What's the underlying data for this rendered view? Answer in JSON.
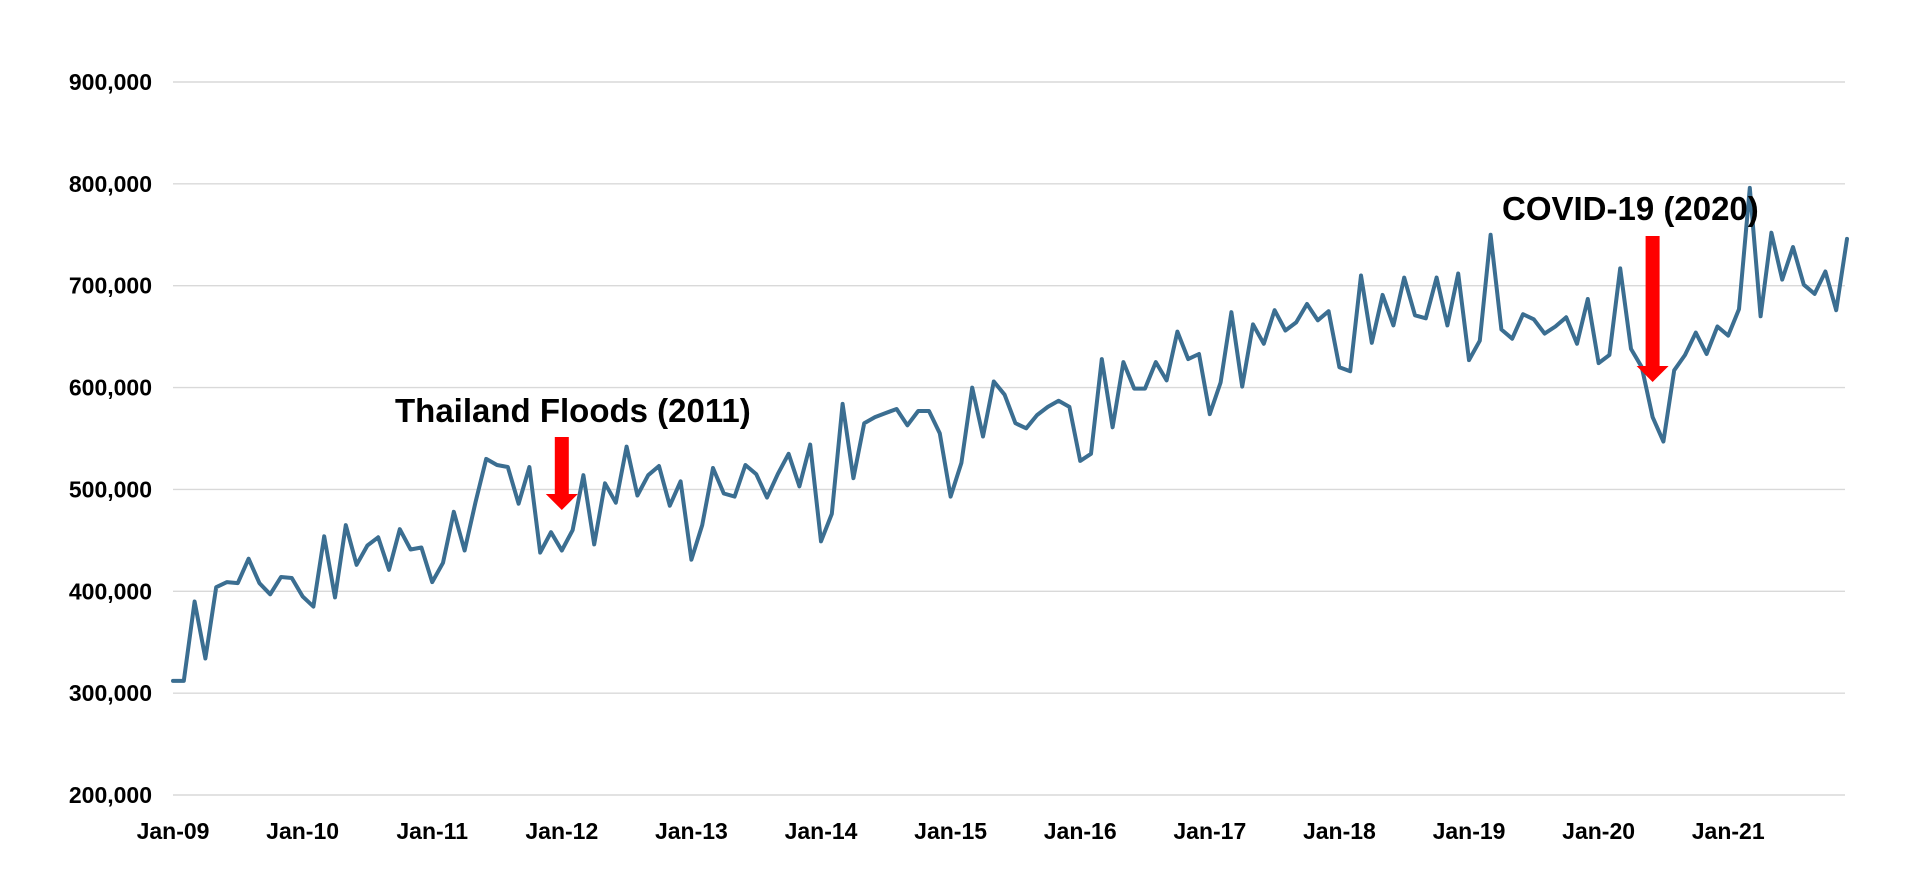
{
  "chart_data": {
    "type": "line",
    "title": "",
    "xlabel": "",
    "ylabel": "",
    "ylim": [
      200000,
      900000
    ],
    "y_ticks": [
      200000,
      300000,
      400000,
      500000,
      600000,
      700000,
      800000,
      900000
    ],
    "y_tick_labels": [
      "200,000",
      "300,000",
      "400,000",
      "500,000",
      "600,000",
      "700,000",
      "800,000",
      "900,000"
    ],
    "x_tick_labels": [
      "Jan-09",
      "Jan-10",
      "Jan-11",
      "Jan-12",
      "Jan-13",
      "Jan-14",
      "Jan-15",
      "Jan-16",
      "Jan-17",
      "Jan-18",
      "Jan-19",
      "Jan-20",
      "Jan-21"
    ],
    "x_start": "Jan-09",
    "x_end": "Dec-21",
    "grid": true,
    "legend": "none",
    "line_color": "#3b6e91",
    "annotation_color": "#ff0000",
    "series": [
      {
        "values": [
          312000,
          312000,
          390000,
          334000,
          404000,
          409000,
          408000,
          432000,
          408000,
          397000,
          414000,
          413000,
          395000,
          385000,
          454000,
          394000,
          465000,
          426000,
          445000,
          453000,
          421000,
          461000,
          441000,
          443000,
          409000,
          428000,
          478000,
          440000,
          487000,
          530000,
          524000,
          522000,
          486000,
          522000,
          438000,
          458000,
          440000,
          460000,
          514000,
          446000,
          506000,
          487000,
          542000,
          494000,
          514000,
          523000,
          484000,
          508000,
          431000,
          465000,
          521000,
          496000,
          493000,
          524000,
          515000,
          492000,
          515000,
          535000,
          503000,
          544000,
          449000,
          476000,
          584000,
          511000,
          565000,
          571000,
          575000,
          579000,
          563000,
          577000,
          577000,
          555000,
          493000,
          526000,
          600000,
          552000,
          606000,
          593000,
          565000,
          560000,
          573000,
          581000,
          587000,
          581000,
          528000,
          535000,
          628000,
          561000,
          625000,
          599000,
          599000,
          625000,
          607000,
          655000,
          628000,
          633000,
          574000,
          605000,
          674000,
          601000,
          662000,
          643000,
          676000,
          656000,
          664000,
          682000,
          666000,
          675000,
          620000,
          616000,
          710000,
          644000,
          691000,
          661000,
          708000,
          671000,
          668000,
          708000,
          661000,
          712000,
          627000,
          646000,
          750000,
          657000,
          648000,
          672000,
          667000,
          653000,
          660000,
          669000,
          643000,
          687000,
          624000,
          632000,
          717000,
          638000,
          620000,
          571000,
          547000,
          617000,
          632000,
          654000,
          633000,
          660000,
          651000,
          677000,
          796000,
          670000,
          752000,
          706000,
          738000,
          701000,
          692000,
          714000,
          676000,
          746000
        ]
      }
    ],
    "annotations": [
      {
        "label": "Thailand Floods (2011)",
        "x_index": 36
      },
      {
        "label": "COVID-19 (2020)",
        "x_index": 137
      }
    ]
  }
}
